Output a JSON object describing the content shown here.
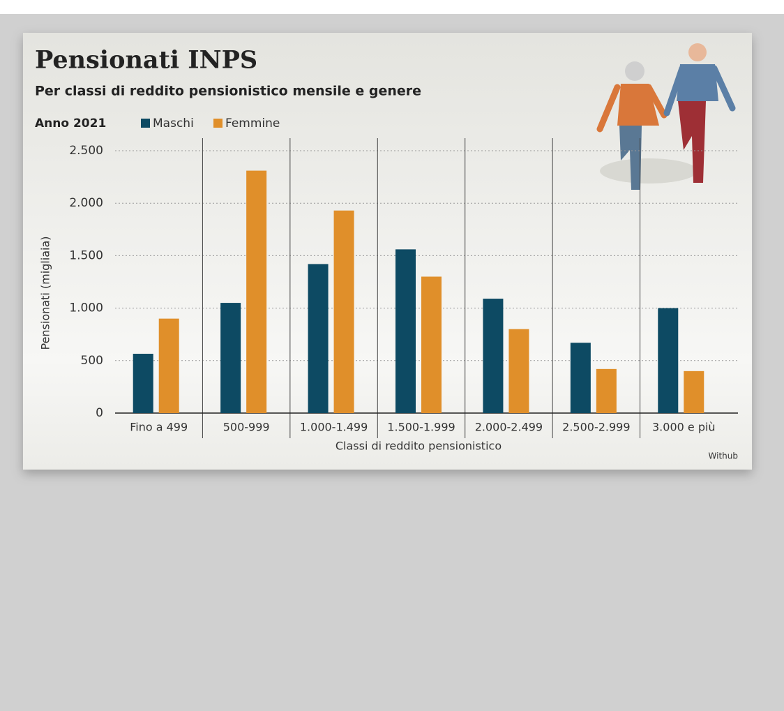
{
  "chart_data": {
    "type": "bar",
    "title": "Pensionati INPS",
    "subtitle": "Per classi di reddito pensionistico mensile e genere",
    "year_label": "Anno 2021",
    "y_label": "Pensionati (migliaia)",
    "x_label": "Classi di reddito pensionistico",
    "source": "Withub",
    "categories": [
      "Fino a 499",
      "500-999",
      "1.000-1.499",
      "1.500-1.999",
      "2.000-2.499",
      "2.500-2.999",
      "3.000 e più"
    ],
    "series": [
      {
        "name": "Maschi",
        "color": "#0d4a63",
        "values": [
          565,
          1050,
          1420,
          1560,
          1090,
          670,
          1000
        ]
      },
      {
        "name": "Femmine",
        "color": "#e08f2a",
        "values": [
          900,
          2310,
          1930,
          1300,
          800,
          420,
          400
        ]
      }
    ],
    "ylim": [
      0,
      2500
    ],
    "yticks": [
      0,
      500,
      {
        "value": 1000,
        "label": "1.000"
      },
      {
        "value": 1500,
        "label": "1.500"
      },
      {
        "value": 2000,
        "label": "2.000"
      },
      {
        "value": 2500,
        "label": "2.500"
      }
    ],
    "grid": true
  }
}
